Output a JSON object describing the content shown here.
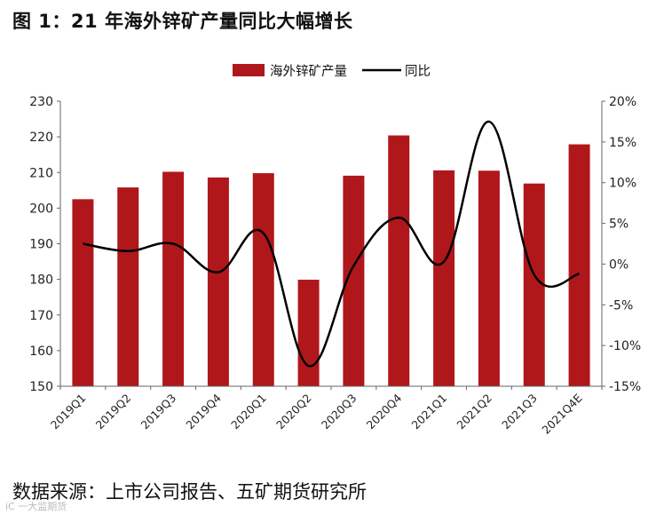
{
  "figure": {
    "title": "图 1：21 年海外锌矿产量同比大幅增长",
    "source": "数据来源：上市公司报告、五矿期货研究所",
    "watermark": "iC 一大监期货"
  },
  "colors": {
    "bar": "#b0171b",
    "line": "#000000",
    "axis": "#666666"
  },
  "chart_data": {
    "type": "bar",
    "categories": [
      "2019Q1",
      "2019Q2",
      "2019Q3",
      "2019Q4",
      "2020Q1",
      "2020Q2",
      "2020Q3",
      "2020Q4",
      "2021Q1",
      "2021Q2",
      "2021Q3",
      "2021Q4E"
    ],
    "series": [
      {
        "name": "海外锌矿产量",
        "type": "bar",
        "axis": "left",
        "values": [
          202.5,
          205.8,
          210.2,
          208.6,
          209.8,
          179.9,
          209.1,
          220.4,
          210.6,
          210.5,
          206.9,
          217.9
        ]
      },
      {
        "name": "同比",
        "type": "line",
        "axis": "right",
        "values": [
          2.5,
          1.6,
          2.5,
          -1.0,
          3.8,
          -12.5,
          -0.2,
          5.7,
          0.3,
          17.5,
          -1.3,
          -1.2
        ]
      }
    ],
    "y_left": {
      "min": 150,
      "max": 230,
      "ticks": [
        150,
        160,
        170,
        180,
        190,
        200,
        210,
        220,
        230
      ]
    },
    "y_right": {
      "min": -15,
      "max": 20,
      "ticks": [
        "-15%",
        "-10%",
        "-5%",
        "0%",
        "5%",
        "10%",
        "15%",
        "20%"
      ]
    },
    "legend": {
      "position": "top-center",
      "entries": [
        "海外锌矿产量",
        "同比"
      ]
    },
    "grid": false
  }
}
